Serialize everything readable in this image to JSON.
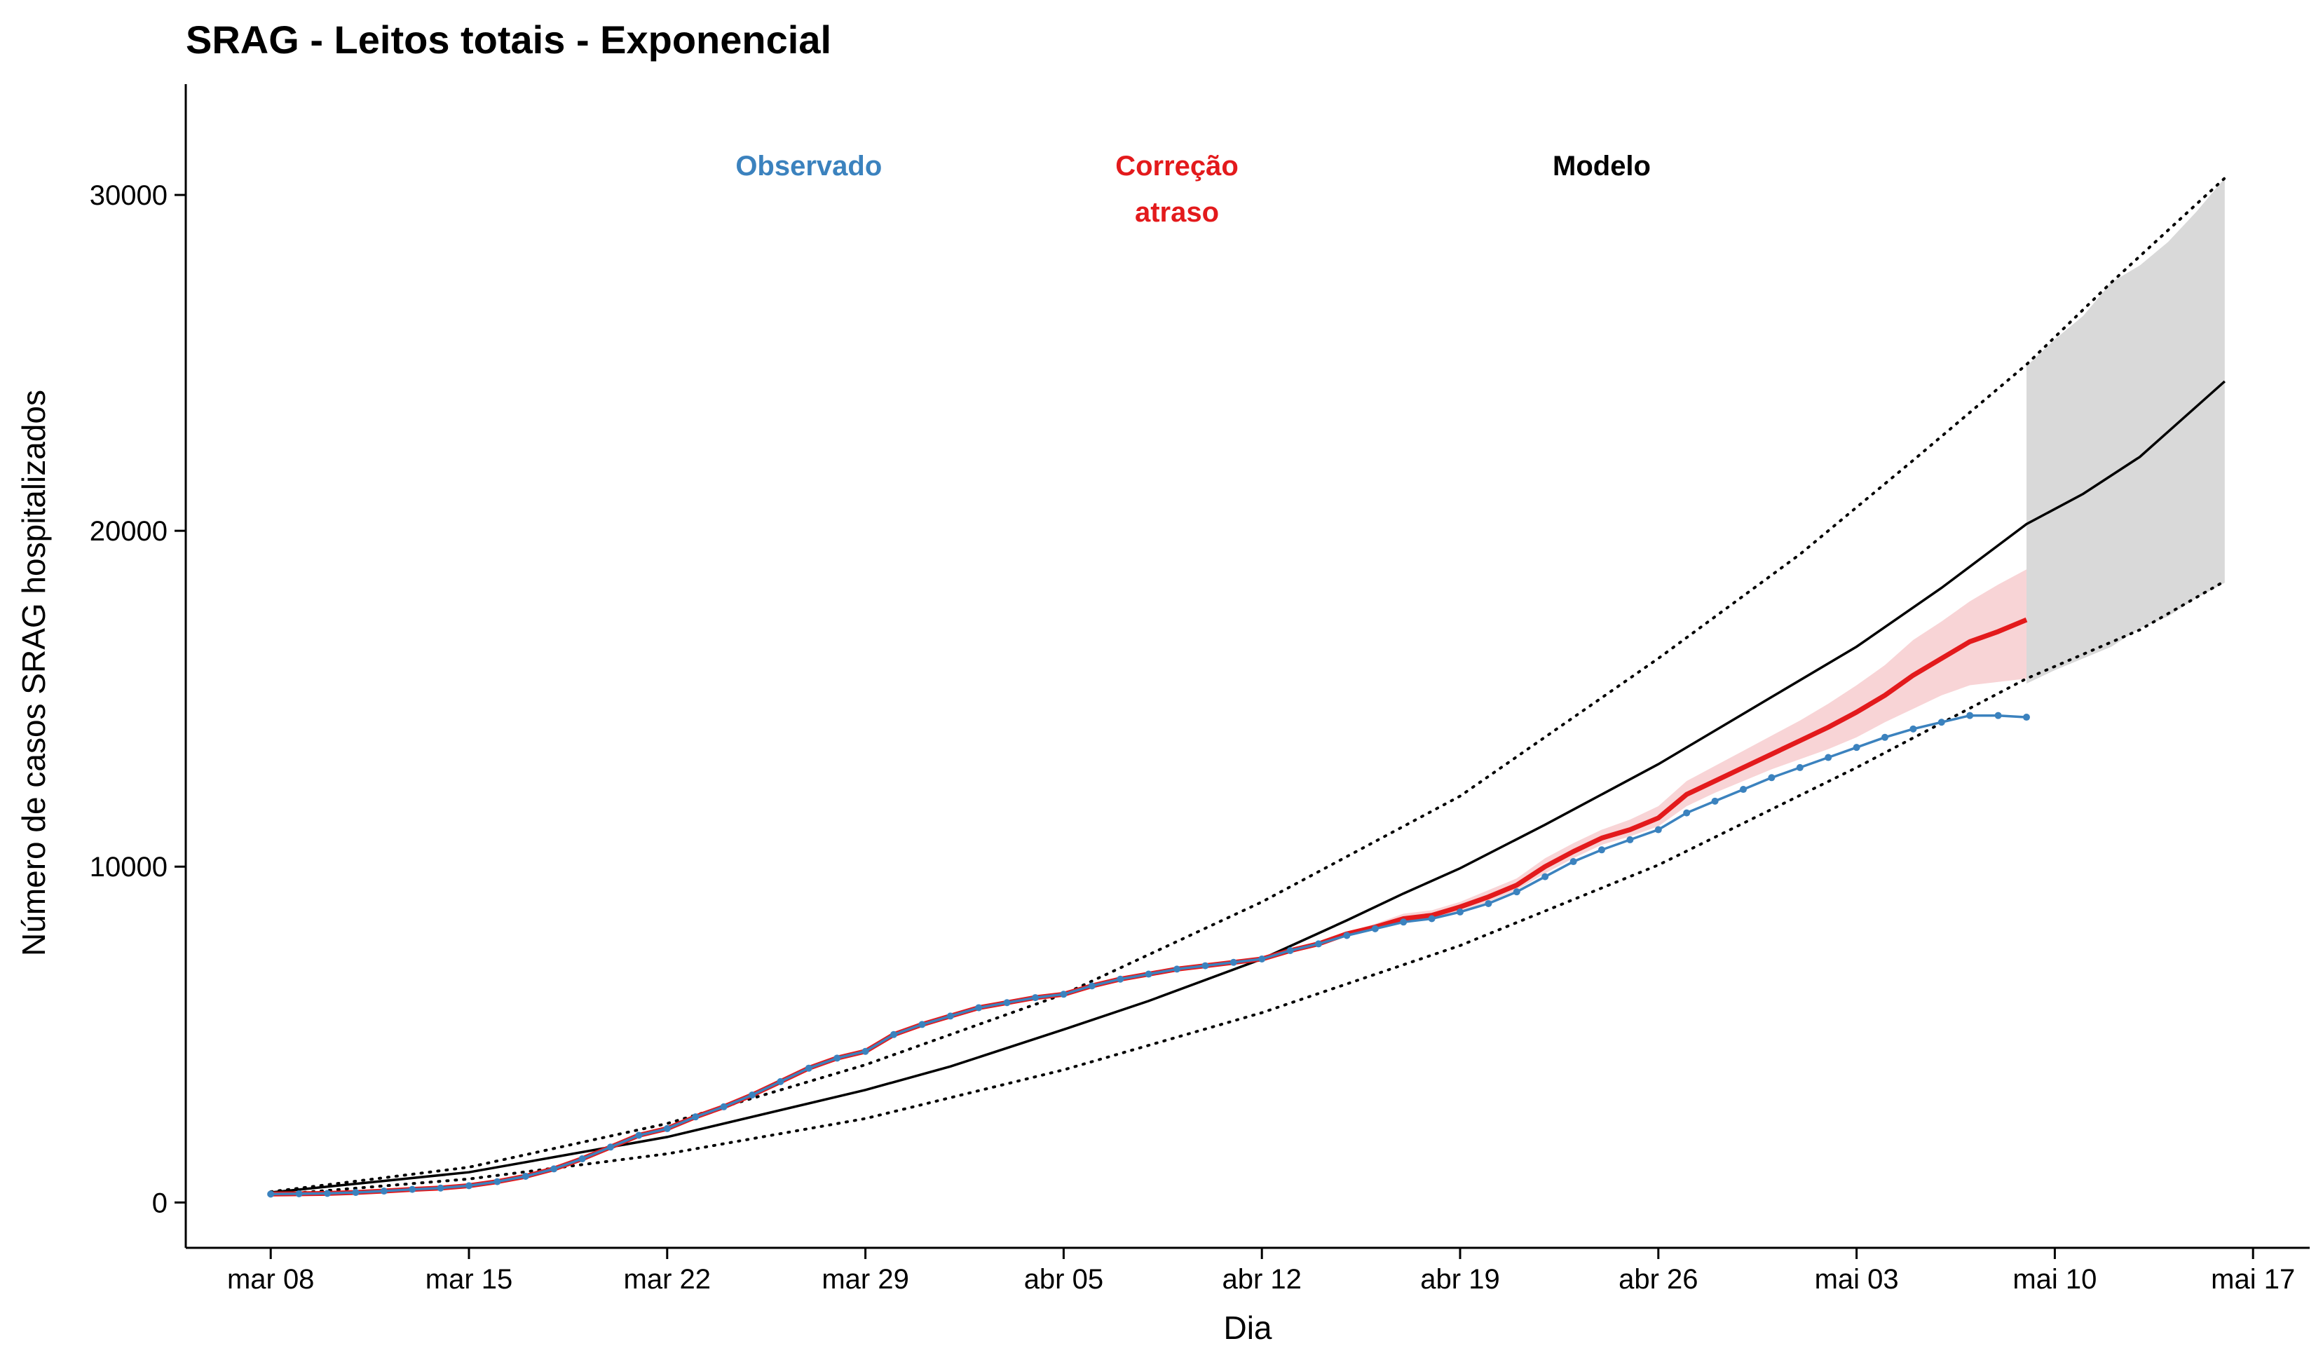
{
  "chart_data": {
    "type": "line",
    "title": "SRAG - Leitos totais - Exponencial",
    "xlabel": "Dia",
    "ylabel": "Número de casos SRAG hospitalizados",
    "x_ticks": [
      "mar 08",
      "mar 15",
      "mar 22",
      "mar 29",
      "abr 05",
      "abr 12",
      "abr 19",
      "abr 26",
      "mai 03",
      "mai 10",
      "mai 17"
    ],
    "y_ticks": [
      0,
      10000,
      20000,
      30000
    ],
    "xlim": [
      "2020-03-05",
      "2020-05-19"
    ],
    "ylim": [
      -1350,
      33300
    ],
    "grid": false,
    "legend_position": "top",
    "annotations": [
      {
        "text_lines": [
          "Observado"
        ],
        "color": "#3b82be",
        "x": "2020-03-27",
        "y": 31000
      },
      {
        "text_lines": [
          "Correção",
          "atraso"
        ],
        "color": "#e31a1c",
        "x": "2020-04-09",
        "y": 31000
      },
      {
        "text_lines": [
          "Modelo"
        ],
        "color": "#000000",
        "x": "2020-04-24",
        "y": 31000
      }
    ],
    "series": [
      {
        "name": "Observado",
        "color": "#3b82be",
        "style": "line-points",
        "x": [
          "2020-03-08",
          "2020-03-09",
          "2020-03-10",
          "2020-03-11",
          "2020-03-12",
          "2020-03-13",
          "2020-03-14",
          "2020-03-15",
          "2020-03-16",
          "2020-03-17",
          "2020-03-18",
          "2020-03-19",
          "2020-03-20",
          "2020-03-21",
          "2020-03-22",
          "2020-03-23",
          "2020-03-24",
          "2020-03-25",
          "2020-03-26",
          "2020-03-27",
          "2020-03-28",
          "2020-03-29",
          "2020-03-30",
          "2020-03-31",
          "2020-04-01",
          "2020-04-02",
          "2020-04-03",
          "2020-04-04",
          "2020-04-05",
          "2020-04-06",
          "2020-04-07",
          "2020-04-08",
          "2020-04-09",
          "2020-04-10",
          "2020-04-11",
          "2020-04-12",
          "2020-04-13",
          "2020-04-14",
          "2020-04-15",
          "2020-04-16",
          "2020-04-17",
          "2020-04-18",
          "2020-04-19",
          "2020-04-20",
          "2020-04-21",
          "2020-04-22",
          "2020-04-23",
          "2020-04-24",
          "2020-04-25",
          "2020-04-26",
          "2020-04-27",
          "2020-04-28",
          "2020-04-29",
          "2020-04-30",
          "2020-05-01",
          "2020-05-02",
          "2020-05-03",
          "2020-05-04",
          "2020-05-05",
          "2020-05-06",
          "2020-05-07",
          "2020-05-08",
          "2020-05-09"
        ],
        "values": [
          250,
          260,
          270,
          300,
          340,
          390,
          430,
          500,
          620,
          780,
          1000,
          1300,
          1650,
          2000,
          2200,
          2550,
          2850,
          3200,
          3600,
          4000,
          4300,
          4500,
          5000,
          5300,
          5550,
          5800,
          5950,
          6100,
          6200,
          6450,
          6650,
          6800,
          6950,
          7050,
          7150,
          7250,
          7500,
          7700,
          7950,
          8150,
          8350,
          8450,
          8650,
          8900,
          9250,
          9700,
          10150,
          10500,
          10800,
          11100,
          11600,
          11950,
          12300,
          12650,
          12950,
          13250,
          13550,
          13850,
          14100,
          14300,
          14500,
          14500,
          14450
        ]
      },
      {
        "name": "Correção atraso",
        "color": "#e31a1c",
        "band_color": "#f8d4d6",
        "x": [
          "2020-03-08",
          "2020-03-09",
          "2020-03-10",
          "2020-03-11",
          "2020-03-12",
          "2020-03-13",
          "2020-03-14",
          "2020-03-15",
          "2020-03-16",
          "2020-03-17",
          "2020-03-18",
          "2020-03-19",
          "2020-03-20",
          "2020-03-21",
          "2020-03-22",
          "2020-03-23",
          "2020-03-24",
          "2020-03-25",
          "2020-03-26",
          "2020-03-27",
          "2020-03-28",
          "2020-03-29",
          "2020-03-30",
          "2020-03-31",
          "2020-04-01",
          "2020-04-02",
          "2020-04-03",
          "2020-04-04",
          "2020-04-05",
          "2020-04-06",
          "2020-04-07",
          "2020-04-08",
          "2020-04-09",
          "2020-04-10",
          "2020-04-11",
          "2020-04-12",
          "2020-04-13",
          "2020-04-14",
          "2020-04-15",
          "2020-04-16",
          "2020-04-17",
          "2020-04-18",
          "2020-04-19",
          "2020-04-20",
          "2020-04-21",
          "2020-04-22",
          "2020-04-23",
          "2020-04-24",
          "2020-04-25",
          "2020-04-26",
          "2020-04-27",
          "2020-04-28",
          "2020-04-29",
          "2020-04-30",
          "2020-05-01",
          "2020-05-02",
          "2020-05-03",
          "2020-05-04",
          "2020-05-05",
          "2020-05-06",
          "2020-05-07",
          "2020-05-08",
          "2020-05-09"
        ],
        "values": [
          250,
          260,
          270,
          300,
          340,
          390,
          430,
          500,
          620,
          780,
          1000,
          1300,
          1650,
          2000,
          2200,
          2550,
          2850,
          3200,
          3600,
          4000,
          4300,
          4500,
          5000,
          5300,
          5550,
          5800,
          5950,
          6100,
          6200,
          6450,
          6650,
          6800,
          6950,
          7050,
          7150,
          7250,
          7500,
          7700,
          8000,
          8200,
          8450,
          8550,
          8800,
          9100,
          9450,
          10000,
          10450,
          10850,
          11100,
          11450,
          12150,
          12550,
          12950,
          13350,
          13750,
          14150,
          14600,
          15100,
          15700,
          16200,
          16700,
          17000,
          17350
        ],
        "lower": [
          250,
          260,
          270,
          300,
          340,
          390,
          430,
          500,
          620,
          780,
          1000,
          1300,
          1650,
          2000,
          2200,
          2550,
          2850,
          3200,
          3600,
          4000,
          4300,
          4500,
          5000,
          5300,
          5550,
          5800,
          5950,
          6100,
          6200,
          6450,
          6650,
          6800,
          6950,
          7050,
          7150,
          7250,
          7500,
          7700,
          7950,
          8150,
          8350,
          8450,
          8650,
          8950,
          9300,
          9800,
          10250,
          10650,
          10900,
          11200,
          11800,
          12200,
          12550,
          12900,
          13200,
          13500,
          13850,
          14300,
          14700,
          15100,
          15400,
          15500,
          15600
        ],
        "upper": [
          250,
          260,
          270,
          300,
          340,
          390,
          430,
          500,
          620,
          780,
          1000,
          1300,
          1650,
          2000,
          2200,
          2550,
          2850,
          3200,
          3600,
          4000,
          4300,
          4500,
          5000,
          5300,
          5550,
          5800,
          5950,
          6100,
          6200,
          6450,
          6650,
          6800,
          6950,
          7050,
          7150,
          7250,
          7500,
          7700,
          8050,
          8300,
          8600,
          8700,
          8950,
          9300,
          9650,
          10250,
          10700,
          11100,
          11400,
          11800,
          12550,
          13000,
          13450,
          13900,
          14350,
          14850,
          15400,
          16000,
          16750,
          17300,
          17900,
          18400,
          18850
        ]
      },
      {
        "name": "Modelo",
        "color": "#000000",
        "style": "line",
        "x": [
          "2020-03-08",
          "2020-03-15",
          "2020-03-22",
          "2020-03-29",
          "2020-04-01",
          "2020-04-05",
          "2020-04-08",
          "2020-04-12",
          "2020-04-15",
          "2020-04-17",
          "2020-04-19",
          "2020-04-22",
          "2020-04-26",
          "2020-04-30",
          "2020-05-03",
          "2020-05-06",
          "2020-05-09",
          "2020-05-11",
          "2020-05-13",
          "2020-05-16"
        ],
        "values": [
          300,
          900,
          1950,
          3350,
          4050,
          5150,
          6000,
          7250,
          8400,
          9200,
          9950,
          11250,
          13050,
          15050,
          16550,
          18300,
          20200,
          21100,
          22200,
          24450
        ]
      },
      {
        "name": "Modelo (limite superior)",
        "color": "#000000",
        "style": "dotted",
        "x": [
          "2020-03-08",
          "2020-03-15",
          "2020-03-22",
          "2020-03-29",
          "2020-04-05",
          "2020-04-12",
          "2020-04-19",
          "2020-04-26",
          "2020-05-01",
          "2020-05-05",
          "2020-05-09",
          "2020-05-12",
          "2020-05-16"
        ],
        "values": [
          320,
          1050,
          2350,
          4100,
          6200,
          8950,
          12100,
          16200,
          19300,
          22100,
          24950,
          27400,
          30500
        ]
      },
      {
        "name": "Modelo (limite inferior)",
        "color": "#000000",
        "style": "dotted",
        "x": [
          "2020-03-08",
          "2020-03-15",
          "2020-03-22",
          "2020-03-29",
          "2020-04-05",
          "2020-04-12",
          "2020-04-19",
          "2020-04-26",
          "2020-05-03",
          "2020-05-09",
          "2020-05-13",
          "2020-05-16"
        ],
        "values": [
          220,
          700,
          1450,
          2500,
          3950,
          5650,
          7650,
          10050,
          12950,
          15600,
          17050,
          18500
        ]
      }
    ],
    "forecast_band": {
      "color": "#d9d9d9",
      "x": [
        "2020-05-09",
        "2020-05-10",
        "2020-05-11",
        "2020-05-12",
        "2020-05-13",
        "2020-05-14",
        "2020-05-15",
        "2020-05-16"
      ],
      "lower": [
        15450,
        15850,
        16200,
        16550,
        17100,
        17450,
        18000,
        18450
      ],
      "upper": [
        24900,
        25700,
        26400,
        27400,
        27900,
        28600,
        29500,
        30500
      ]
    }
  }
}
